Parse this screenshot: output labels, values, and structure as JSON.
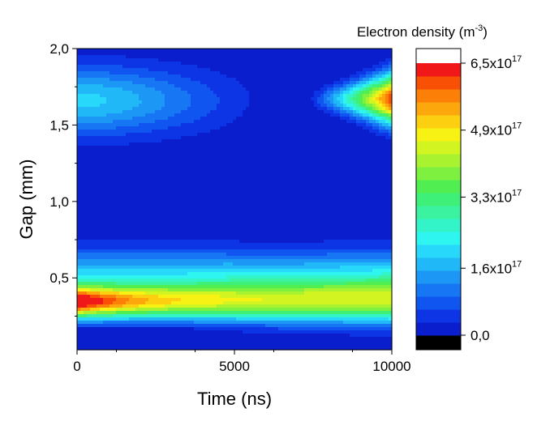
{
  "chart_data": {
    "type": "heatmap",
    "subtype": "filled-contour",
    "xlabel": "Time (ns)",
    "ylabel": "Gap (mm)",
    "xlim": [
      0,
      10000
    ],
    "ylim": [
      0.03,
      2.0
    ],
    "x_ticks": [
      {
        "value": 0,
        "label": "0"
      },
      {
        "value": 5000,
        "label": "5000"
      },
      {
        "value": 10000,
        "label": "10000"
      }
    ],
    "y_ticks": [
      {
        "value": 0.5,
        "label": "0,5"
      },
      {
        "value": 1.0,
        "label": "1,0"
      },
      {
        "value": 1.5,
        "label": "1,5"
      },
      {
        "value": 2.0,
        "label": "2,0"
      }
    ],
    "colorbar": {
      "title": "Electron density (m",
      "title_exponent": "-3",
      "title_close": ")",
      "range": [
        0,
        6.5e+17
      ],
      "ticks": [
        {
          "value": 0,
          "mantissa": "0,0",
          "exponent": ""
        },
        {
          "value": 1.6e+17,
          "mantissa": "1,6x10",
          "exponent": "17"
        },
        {
          "value": 3.3e+17,
          "mantissa": "3,3x10",
          "exponent": "17"
        },
        {
          "value": 4.9e+17,
          "mantissa": "4,9x10",
          "exponent": "17"
        },
        {
          "value": 6.5e+17,
          "mantissa": "6,5x10",
          "exponent": "17"
        }
      ]
    },
    "features": [
      {
        "name": "lower-peak",
        "time": 0,
        "gap": 0.34,
        "density": 6.3e+17
      },
      {
        "name": "upper-early-band",
        "time": 0,
        "gap": 1.65,
        "density": 2e+17
      },
      {
        "name": "upper-late-peak",
        "time": 9500,
        "gap": 1.67,
        "density": 6.3e+17
      },
      {
        "name": "middle-trough",
        "time": 6500,
        "gap": 0.9,
        "density": 1e+16
      }
    ],
    "grid": false,
    "legend": "colorbar-right"
  }
}
